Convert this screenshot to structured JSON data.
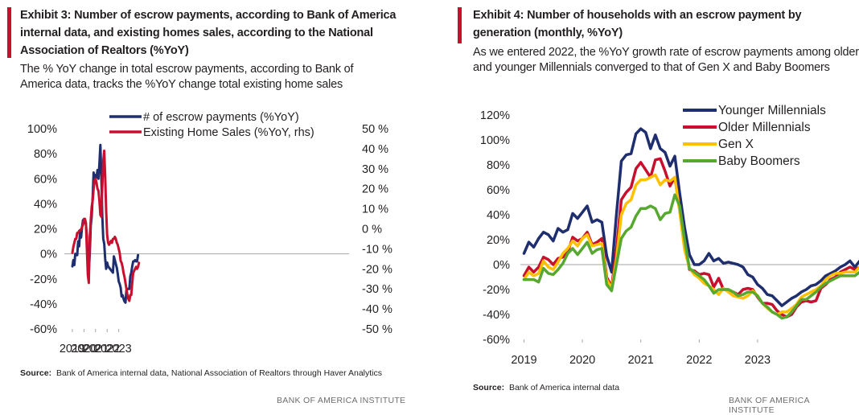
{
  "left": {
    "title": "Exhibit 3: Number of escrow payments, according to Bank of America internal data, and existing homes sales, according to the National  Association of Realtors (%YoY)",
    "subtitle": "The % YoY change in total escrow payments, according to Bank of America data, tracks the %YoY change total existing home sales",
    "source_label": "Source:",
    "source_text": "Bank of America internal data, National Association of Realtors through  Haver Analytics",
    "brand": "BANK OF AMERICA INSTITUTE"
  },
  "right": {
    "title": "Exhibit 4: Number of households with an escrow payment by generation (monthly, %YoY)",
    "subtitle": "As we entered 2022, the %YoY growth rate of escrow payments among older and younger Millennials converged to that of Gen X and Baby Boomers",
    "source_label": "Source:",
    "source_text": "Bank of America internal data",
    "brand": "BANK OF AMERICA INSTITUTE"
  },
  "chart_data": [
    {
      "type": "line",
      "x_labels": [
        "2019",
        "2020",
        "2021",
        "2022",
        "2023"
      ],
      "y_left_ticks": [
        "100%",
        "80%",
        "60%",
        "40%",
        "20%",
        "0%",
        "-20%",
        "-40%",
        "-60%"
      ],
      "y_right_ticks": [
        "50 %",
        "40 %",
        "30 %",
        "20 %",
        "10 %",
        "0 %",
        "-10 %",
        "-20 %",
        "-30 %",
        "-40 %",
        "-50 %"
      ],
      "ylim_left": [
        -60,
        100
      ],
      "ylim_right": [
        -50,
        50
      ],
      "x_start": "2019-01",
      "x_end": "2023-10",
      "legend_position": "top-center",
      "series": [
        {
          "name": "# of escrow payments (%YoY)",
          "axis": "left",
          "color": "#1f2e6e",
          "values": [
            -10,
            -5,
            -9,
            0,
            -1,
            -1,
            10,
            6,
            19,
            13,
            21,
            27,
            25,
            25,
            24,
            14,
            -10,
            -15,
            0,
            22,
            30,
            45,
            65,
            60,
            63,
            61,
            67,
            60,
            72,
            87,
            62,
            30,
            12,
            8,
            -4,
            -12,
            -7,
            -10,
            -11,
            -12,
            -13,
            -14,
            -15,
            -2,
            -5,
            -8,
            -11,
            -16,
            -22,
            -24,
            -27,
            -34,
            -33,
            -36,
            -38,
            -39,
            -29,
            -28,
            -28,
            -28,
            -18,
            -15,
            -10,
            -6,
            -6,
            -5,
            -6,
            -6,
            -1
          ]
        },
        {
          "name": "Existing Home Sales (%YoY, rhs)",
          "axis": "right",
          "color": "#c8102e",
          "values": [
            -12,
            -9,
            -7,
            -5,
            -5,
            -2,
            -2,
            -1,
            -1,
            -0.5,
            1,
            2,
            5,
            5,
            3,
            -10,
            -23,
            -27,
            -4,
            4,
            11,
            14,
            20,
            24,
            25,
            23,
            20,
            19,
            14,
            7,
            6,
            21,
            34,
            39,
            26,
            9,
            -3,
            -7,
            -8,
            -7,
            -6,
            -7,
            -5,
            -5,
            -4,
            -5,
            -7,
            -8,
            -10,
            -12,
            -16,
            -17,
            -19,
            -22,
            -24,
            -27,
            -30,
            -33,
            -35,
            -36,
            -33,
            -33,
            -27,
            -22,
            -21,
            -20,
            -19,
            -20,
            -19,
            -17
          ]
        }
      ]
    },
    {
      "type": "line",
      "x_labels": [
        "2019",
        "2020",
        "2021",
        "2022",
        "2023"
      ],
      "y_ticks": [
        "120%",
        "100%",
        "80%",
        "60%",
        "40%",
        "20%",
        "0%",
        "-20%",
        "-40%",
        "-60%"
      ],
      "ylim": [
        -60,
        120
      ],
      "x_start": "2019-01",
      "x_end": "2023-10",
      "legend_position": "top-center",
      "series": [
        {
          "name": "Younger Millennials",
          "color": "#1f2e6e",
          "values": [
            9,
            18,
            14,
            21,
            26,
            24,
            19,
            29,
            26,
            28,
            41,
            37,
            42,
            47,
            34,
            36,
            34,
            7,
            -6,
            40,
            83,
            88,
            89,
            105,
            109,
            106,
            93,
            104,
            93,
            90,
            79,
            87,
            57,
            30,
            8,
            0,
            0,
            3,
            9,
            3,
            5,
            1,
            2,
            1,
            0,
            -2,
            -8,
            -10,
            -16,
            -19,
            -24,
            -25,
            -29,
            -33,
            -30,
            -27,
            -25,
            -22,
            -20,
            -17,
            -16,
            -13,
            -9,
            -7,
            -5,
            -2,
            0,
            3,
            -2,
            3,
            8
          ]
        },
        {
          "name": "Older Millennials",
          "color": "#c8102e",
          "values": [
            -9,
            -2,
            -6,
            -2,
            6,
            4,
            0,
            5,
            6,
            10,
            22,
            19,
            21,
            26,
            16,
            18,
            21,
            -10,
            -18,
            12,
            52,
            58,
            62,
            77,
            82,
            76,
            70,
            84,
            85,
            75,
            63,
            70,
            44,
            18,
            -4,
            -5,
            -8,
            -7,
            -8,
            -18,
            -11,
            -20,
            -20,
            -22,
            -24,
            -20,
            -19,
            -20,
            -26,
            -31,
            -31,
            -32,
            -37,
            -40,
            -42,
            -40,
            -34,
            -30,
            -29,
            -30,
            -29,
            -19,
            -16,
            -12,
            -10,
            -6,
            -4,
            -2,
            -4,
            -2,
            -4
          ]
        },
        {
          "name": "Gen X",
          "color": "#ffc000",
          "values": [
            -12,
            -6,
            -9,
            -7,
            3,
            -2,
            -4,
            2,
            9,
            13,
            19,
            15,
            21,
            24,
            15,
            16,
            17,
            -12,
            -19,
            4,
            40,
            49,
            52,
            64,
            68,
            68,
            70,
            72,
            64,
            68,
            67,
            70,
            42,
            12,
            -3,
            -8,
            -11,
            -15,
            -17,
            -20,
            -24,
            -19,
            -22,
            -25,
            -26,
            -27,
            -25,
            -21,
            -25,
            -31,
            -35,
            -38,
            -40,
            -38,
            -38,
            -35,
            -32,
            -26,
            -24,
            -22,
            -20,
            -17,
            -12,
            -9,
            -7,
            -7,
            -6,
            -6,
            -6,
            -2,
            -3
          ]
        },
        {
          "name": "Baby Boomers",
          "color": "#57a831",
          "values": [
            -12,
            -12,
            -12,
            -14,
            -3,
            -7,
            -8,
            -4,
            1,
            9,
            13,
            8,
            13,
            18,
            9,
            12,
            13,
            -16,
            -21,
            0,
            21,
            27,
            30,
            39,
            45,
            45,
            47,
            45,
            36,
            41,
            42,
            56,
            47,
            20,
            -3,
            -6,
            -9,
            -12,
            -17,
            -23,
            -20,
            -20,
            -20,
            -22,
            -25,
            -24,
            -22,
            -22,
            -25,
            -31,
            -34,
            -38,
            -40,
            -43,
            -42,
            -38,
            -33,
            -28,
            -28,
            -25,
            -22,
            -18,
            -15,
            -13,
            -11,
            -9,
            -9,
            -9,
            -9,
            -6,
            -4
          ]
        }
      ]
    }
  ]
}
